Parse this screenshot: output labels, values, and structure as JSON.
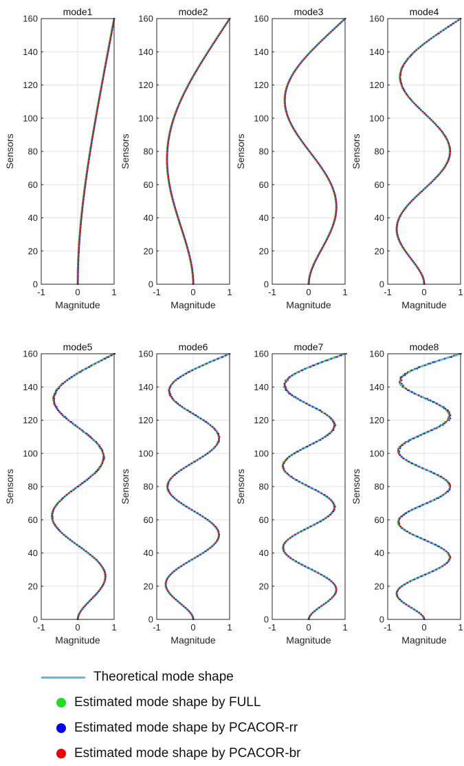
{
  "chart_data": {
    "type": "line",
    "panel_titles": [
      "mode1",
      "mode2",
      "mode3",
      "mode4",
      "mode5",
      "mode6",
      "mode7",
      "mode8"
    ],
    "xlabel": "Magnitude",
    "ylabel": "Sensors",
    "xlim": [
      -1,
      1
    ],
    "ylim": [
      0,
      160
    ],
    "xticks": [
      -1,
      0,
      1
    ],
    "yticks": [
      0,
      20,
      40,
      60,
      80,
      100,
      120,
      140,
      160
    ],
    "grid": true,
    "sensor_count": 160,
    "mode_shape_model": "cantilever",
    "colors": {
      "theoretical": "#4fc1e9",
      "full": "#22dd22",
      "pcacor_rr": "#0000ee",
      "pcacor_br": "#ee0000"
    },
    "estimate_noise_by_mode": [
      0,
      0,
      0,
      0.01,
      0.025,
      0.015,
      0.03,
      0.045
    ],
    "series": [
      {
        "name": "Theoretical mode shape",
        "marker": "line"
      },
      {
        "name": "Estimated mode shape by FULL",
        "marker": "dot"
      },
      {
        "name": "Estimated mode shape by PCACOR-rr",
        "marker": "dot"
      },
      {
        "name": "Estimated mode shape by PCACOR-br",
        "marker": "dot"
      }
    ]
  }
}
